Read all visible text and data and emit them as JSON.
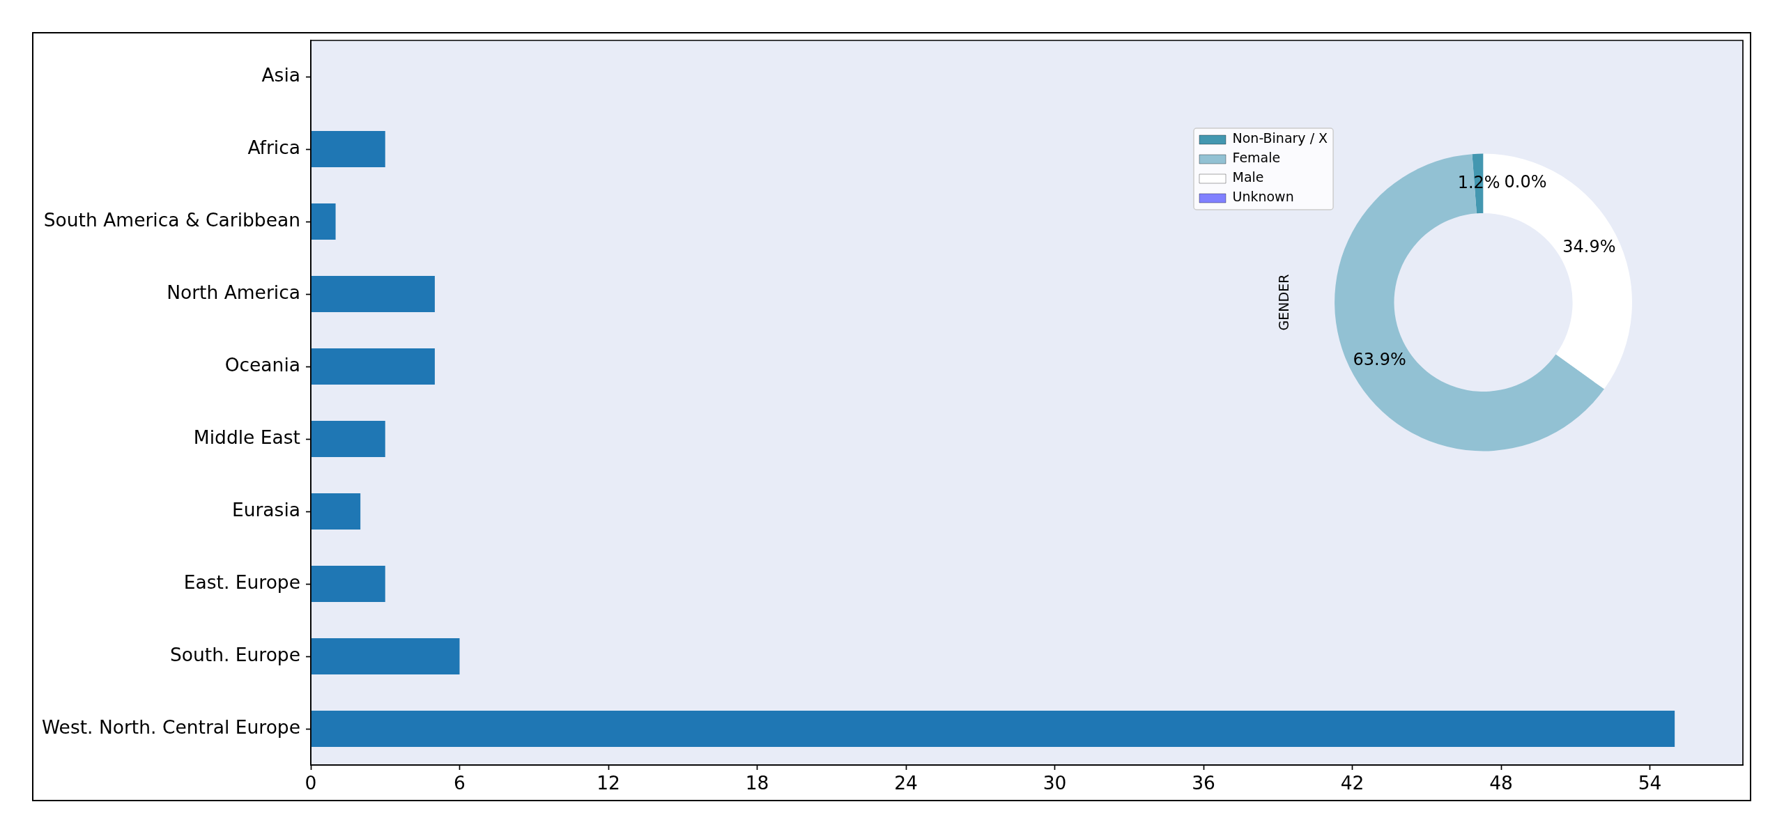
{
  "chart_data": [
    {
      "type": "bar",
      "orientation": "horizontal",
      "categories": [
        "Asia",
        "Africa",
        "South America & Caribbean",
        "North America",
        "Oceania",
        "Middle East",
        "Eurasia",
        "East. Europe",
        "South. Europe",
        "West. North. Central Europe"
      ],
      "values": [
        0,
        3,
        1,
        5,
        5,
        3,
        2,
        3,
        6,
        55
      ],
      "color": "#1f77b4",
      "xlim": [
        0,
        57.75
      ],
      "xticks": [
        0,
        6,
        12,
        18,
        24,
        30,
        36,
        42,
        48,
        54
      ]
    },
    {
      "type": "donut",
      "categories": [
        "Non-Binary / X",
        "Female",
        "Male",
        "Unknown"
      ],
      "values": [
        1.2,
        63.9,
        34.9,
        0.0
      ],
      "colors": [
        "#4397b0",
        "#92c1d3",
        "#ffffff",
        "#8080ff"
      ],
      "value_labels": [
        "1.2%",
        "63.9%",
        "34.9%",
        "0.0%"
      ],
      "ylabel": "GENDER",
      "legend": "top left"
    }
  ]
}
